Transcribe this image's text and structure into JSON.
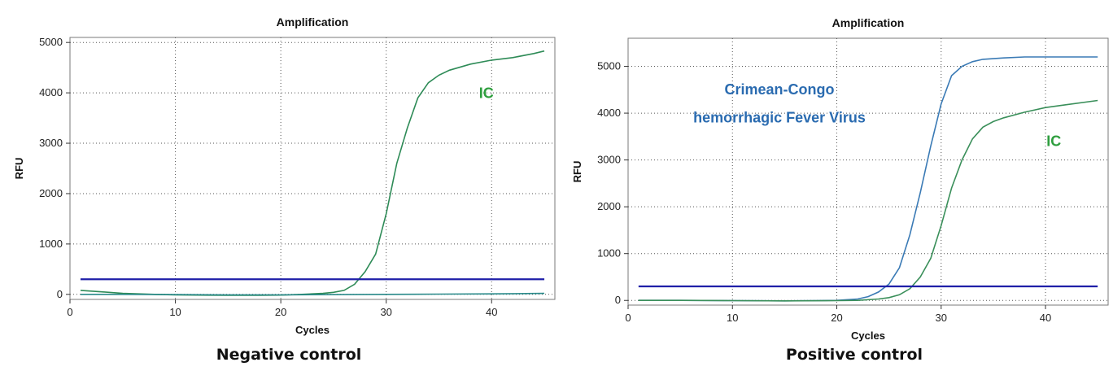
{
  "chart_data": [
    {
      "type": "line",
      "title": "Amplification",
      "xlabel": "Cycles",
      "ylabel": "RFU",
      "caption": "Negative control",
      "xlim": [
        0,
        46
      ],
      "ylim": [
        -100,
        5100
      ],
      "xticks": [
        0,
        10,
        20,
        30,
        40
      ],
      "yticks": [
        0,
        1000,
        2000,
        3000,
        4000,
        5000
      ],
      "grid": true,
      "threshold": 300,
      "threshold_color": "#1f1fa8",
      "series": [
        {
          "name": "IC",
          "color": "#2e8b57",
          "label_color": "#2e9e3e",
          "x": [
            1,
            3,
            5,
            8,
            10,
            12,
            15,
            18,
            20,
            22,
            24,
            25,
            26,
            27,
            28,
            29,
            30,
            31,
            32,
            33,
            34,
            35,
            36,
            38,
            40,
            42,
            44,
            45
          ],
          "y": [
            80,
            50,
            20,
            0,
            -10,
            -15,
            -20,
            -20,
            -15,
            0,
            20,
            40,
            80,
            200,
            450,
            800,
            1600,
            2600,
            3300,
            3900,
            4200,
            4350,
            4450,
            4570,
            4650,
            4700,
            4780,
            4830
          ]
        },
        {
          "name": "",
          "color": "#2a8a8a",
          "x": [
            1,
            5,
            10,
            15,
            20,
            25,
            30,
            35,
            40,
            45
          ],
          "y": [
            0,
            0,
            -5,
            -10,
            -10,
            -5,
            0,
            5,
            10,
            20
          ]
        }
      ],
      "annotations": [
        {
          "text": "IC",
          "x": 39.5,
          "y": 3900,
          "color": "#2e9e3e"
        }
      ]
    },
    {
      "type": "line",
      "title": "Amplification",
      "xlabel": "Cycles",
      "ylabel": "RFU",
      "caption": "Positive control",
      "xlim": [
        0,
        46
      ],
      "ylim": [
        -100,
        5600
      ],
      "xticks": [
        0,
        10,
        20,
        30,
        40
      ],
      "yticks": [
        0,
        1000,
        2000,
        3000,
        4000,
        5000
      ],
      "grid": true,
      "threshold": 300,
      "threshold_color": "#1f1fa8",
      "series": [
        {
          "name": "Crimean-Congo hemorrhagic Fever Virus",
          "color": "#3a7ab5",
          "x": [
            1,
            5,
            10,
            15,
            18,
            20,
            22,
            23,
            24,
            25,
            26,
            27,
            28,
            29,
            30,
            31,
            32,
            33,
            34,
            36,
            38,
            40,
            42,
            45
          ],
          "y": [
            0,
            0,
            -5,
            -10,
            -5,
            0,
            30,
            80,
            180,
            350,
            700,
            1400,
            2300,
            3300,
            4200,
            4800,
            5000,
            5100,
            5150,
            5180,
            5200,
            5200,
            5200,
            5200
          ]
        },
        {
          "name": "IC",
          "color": "#3a8f5a",
          "x": [
            1,
            5,
            10,
            15,
            20,
            22,
            24,
            25,
            26,
            27,
            28,
            29,
            30,
            31,
            32,
            33,
            34,
            35,
            36,
            38,
            40,
            42,
            45
          ],
          "y": [
            0,
            0,
            -5,
            -10,
            -5,
            0,
            30,
            60,
            120,
            250,
            500,
            900,
            1600,
            2400,
            3000,
            3450,
            3700,
            3820,
            3900,
            4020,
            4120,
            4180,
            4270
          ]
        }
      ],
      "annotations": [
        {
          "text": "Crimean-Congo",
          "x": 14.5,
          "y": 4400,
          "color": "#2a6bb0"
        },
        {
          "text": "hemorrhagic Fever Virus",
          "x": 14.5,
          "y": 3800,
          "color": "#2a6bb0"
        },
        {
          "text": "IC",
          "x": 40.8,
          "y": 3300,
          "color": "#2e9e3e"
        }
      ]
    }
  ]
}
